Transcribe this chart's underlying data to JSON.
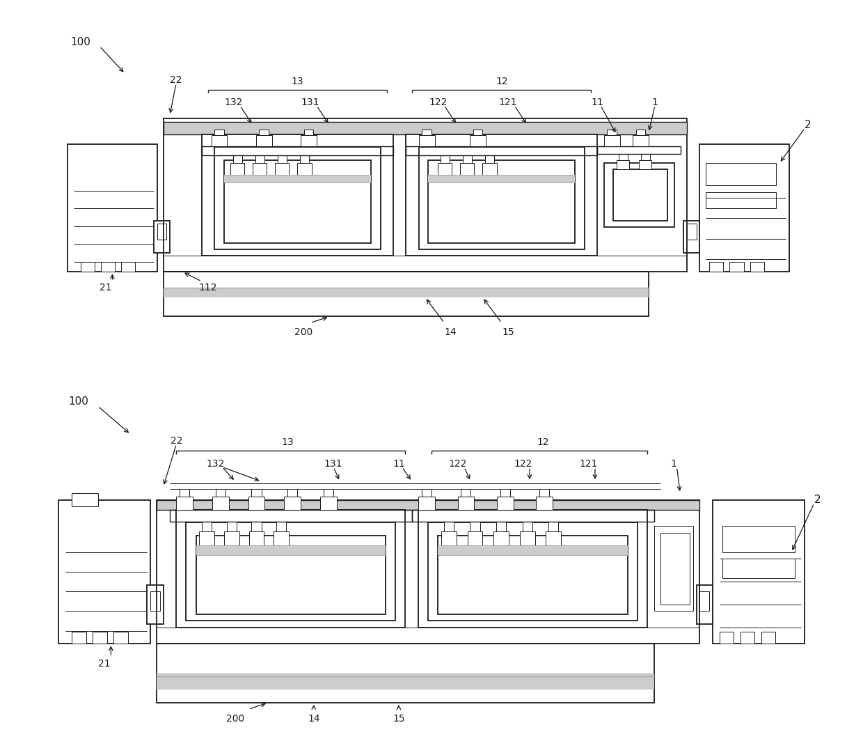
{
  "bg": "#ffffff",
  "lc": "#1a1a1a",
  "lw": 1.3,
  "lw_thin": 0.7,
  "lw_med": 1.0,
  "fig_w": 12.4,
  "fig_h": 10.84,
  "gray": "#aaaaaa",
  "lgray": "#cccccc"
}
